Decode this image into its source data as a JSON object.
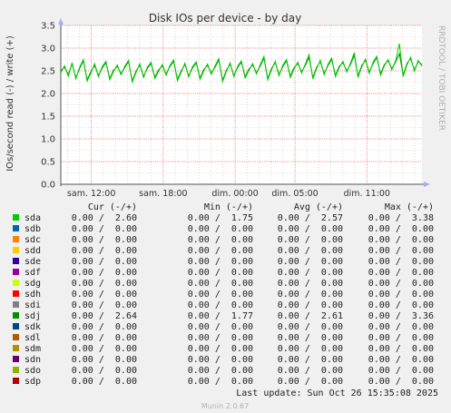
{
  "title": "Disk IOs per device - by day",
  "ylabel": "IOs/second read (-) / write (+)",
  "side_label": "RRDTOOL / TOBI OETIKER",
  "footer": "Munin 2.0.67",
  "last_update": "Last update: Sun Oct 26 15:35:08 2025",
  "table_headers": [
    "Cur (-/+)",
    "Min (-/+)",
    "Avg (-/+)",
    "Max (-/+)"
  ],
  "legend": [
    {
      "name": "sda",
      "color": "#00cc00",
      "cur": "0.00 /  2.60",
      "min": "0.00 /  1.75",
      "avg": "0.00 /  2.57",
      "max": "0.00 /  3.38"
    },
    {
      "name": "sdb",
      "color": "#0066b3",
      "cur": "0.00 /  0.00",
      "min": "0.00 /  0.00",
      "avg": "0.00 /  0.00",
      "max": "0.00 /  0.00"
    },
    {
      "name": "sdc",
      "color": "#ff8000",
      "cur": "0.00 /  0.00",
      "min": "0.00 /  0.00",
      "avg": "0.00 /  0.00",
      "max": "0.00 /  0.00"
    },
    {
      "name": "sdd",
      "color": "#ffcc00",
      "cur": "0.00 /  0.00",
      "min": "0.00 /  0.00",
      "avg": "0.00 /  0.00",
      "max": "0.00 /  0.00"
    },
    {
      "name": "sde",
      "color": "#330099",
      "cur": "0.00 /  0.00",
      "min": "0.00 /  0.00",
      "avg": "0.00 /  0.00",
      "max": "0.00 /  0.00"
    },
    {
      "name": "sdf",
      "color": "#990099",
      "cur": "0.00 /  0.00",
      "min": "0.00 /  0.00",
      "avg": "0.00 /  0.00",
      "max": "0.00 /  0.00"
    },
    {
      "name": "sdg",
      "color": "#ccff00",
      "cur": "0.00 /  0.00",
      "min": "0.00 /  0.00",
      "avg": "0.00 /  0.00",
      "max": "0.00 /  0.00"
    },
    {
      "name": "sdh",
      "color": "#ff0000",
      "cur": "0.00 /  0.00",
      "min": "0.00 /  0.00",
      "avg": "0.00 /  0.00",
      "max": "0.00 /  0.00"
    },
    {
      "name": "sdi",
      "color": "#808080",
      "cur": "0.00 /  0.00",
      "min": "0.00 /  0.00",
      "avg": "0.00 /  0.00",
      "max": "0.00 /  0.00"
    },
    {
      "name": "sdj",
      "color": "#008f00",
      "cur": "0.00 /  2.64",
      "min": "0.00 /  1.77",
      "avg": "0.00 /  2.61",
      "max": "0.00 /  3.36"
    },
    {
      "name": "sdk",
      "color": "#00487d",
      "cur": "0.00 /  0.00",
      "min": "0.00 /  0.00",
      "avg": "0.00 /  0.00",
      "max": "0.00 /  0.00"
    },
    {
      "name": "sdl",
      "color": "#b35a00",
      "cur": "0.00 /  0.00",
      "min": "0.00 /  0.00",
      "avg": "0.00 /  0.00",
      "max": "0.00 /  0.00"
    },
    {
      "name": "sdm",
      "color": "#b38f00",
      "cur": "0.00 /  0.00",
      "min": "0.00 /  0.00",
      "avg": "0.00 /  0.00",
      "max": "0.00 /  0.00"
    },
    {
      "name": "sdn",
      "color": "#6b006b",
      "cur": "0.00 /  0.00",
      "min": "0.00 /  0.00",
      "avg": "0.00 /  0.00",
      "max": "0.00 /  0.00"
    },
    {
      "name": "sdo",
      "color": "#8fb300",
      "cur": "0.00 /  0.00",
      "min": "0.00 /  0.00",
      "avg": "0.00 /  0.00",
      "max": "0.00 /  0.00"
    },
    {
      "name": "sdp",
      "color": "#b30000",
      "cur": "0.00 /  0.00",
      "min": "0.00 /  0.00",
      "avg": "0.00 /  0.00",
      "max": "0.00 /  0.00"
    }
  ],
  "chart_data": {
    "type": "line",
    "title": "Disk IOs per device - by day",
    "ylabel": "IOs/second read (-) / write (+)",
    "xlabel": "",
    "ylim": [
      0,
      3.5
    ],
    "yticks": [
      0.0,
      0.5,
      1.0,
      1.5,
      2.0,
      2.5,
      3.0,
      3.5
    ],
    "yticklabels": [
      "0.0",
      "0.5",
      "1.0",
      "1.5",
      "2.0",
      "2.5",
      "3.0",
      "3.5"
    ],
    "xticks": [
      {
        "label": "sam. 12:00",
        "hour": 0
      },
      {
        "label": "sam. 18:00",
        "hour": 6
      },
      {
        "label": "dim. 00:00",
        "hour": 12
      },
      {
        "label": "dim. 05:00",
        "hour": 17
      },
      {
        "label": "dim. 11:00",
        "hour": 23
      }
    ],
    "xlim_hours": [
      -2.55,
      27.6
    ],
    "grid": true,
    "series": [
      {
        "name": "sdj",
        "color": "#008f00",
        "values": [
          2.5,
          2.58,
          2.42,
          2.65,
          2.35,
          2.55,
          2.72,
          2.3,
          2.48,
          2.62,
          2.4,
          2.56,
          2.68,
          2.33,
          2.51,
          2.6,
          2.44,
          2.57,
          2.7,
          2.28,
          2.49,
          2.63,
          2.38,
          2.55,
          2.66,
          2.36,
          2.52,
          2.61,
          2.43,
          2.59,
          2.71,
          2.31,
          2.5,
          2.64,
          2.39,
          2.56,
          2.67,
          2.34,
          2.53,
          2.62,
          2.45,
          2.58,
          2.74,
          2.29,
          2.51,
          2.65,
          2.4,
          2.57,
          2.69,
          2.37,
          2.54,
          2.63,
          2.46,
          2.6,
          2.78,
          2.33,
          2.55,
          2.68,
          2.42,
          2.59,
          2.72,
          2.38,
          2.57,
          2.66,
          2.48,
          2.62,
          2.8,
          2.35,
          2.58,
          2.7,
          2.44,
          2.61,
          2.75,
          2.4,
          2.6,
          2.68,
          2.5,
          2.64,
          2.84,
          2.38,
          2.62,
          2.73,
          2.47,
          2.66,
          2.79,
          2.43,
          2.64,
          2.72,
          2.55,
          2.69,
          2.88,
          2.4,
          2.66,
          2.77,
          2.52,
          2.7,
          2.64
        ]
      },
      {
        "name": "sda",
        "color": "#00cc00",
        "values": [
          2.46,
          2.61,
          2.38,
          2.68,
          2.32,
          2.58,
          2.75,
          2.27,
          2.45,
          2.66,
          2.37,
          2.59,
          2.71,
          2.3,
          2.48,
          2.63,
          2.41,
          2.6,
          2.73,
          2.25,
          2.46,
          2.66,
          2.35,
          2.58,
          2.69,
          2.33,
          2.49,
          2.64,
          2.4,
          2.62,
          2.74,
          2.28,
          2.47,
          2.67,
          2.36,
          2.59,
          2.7,
          2.31,
          2.5,
          2.65,
          2.42,
          2.61,
          2.77,
          2.26,
          2.48,
          2.68,
          2.37,
          2.6,
          2.72,
          2.34,
          2.51,
          2.66,
          2.43,
          2.63,
          2.82,
          2.3,
          2.52,
          2.71,
          2.39,
          2.62,
          2.75,
          2.35,
          2.54,
          2.69,
          2.45,
          2.65,
          2.86,
          2.32,
          2.55,
          2.73,
          2.41,
          2.64,
          2.78,
          2.37,
          2.57,
          2.71,
          2.47,
          2.67,
          2.9,
          2.35,
          2.59,
          2.76,
          2.44,
          2.69,
          2.82,
          2.4,
          2.61,
          2.75,
          2.52,
          2.72,
          3.1,
          2.37,
          2.63,
          2.8,
          2.49,
          2.73,
          2.6
        ]
      }
    ]
  }
}
